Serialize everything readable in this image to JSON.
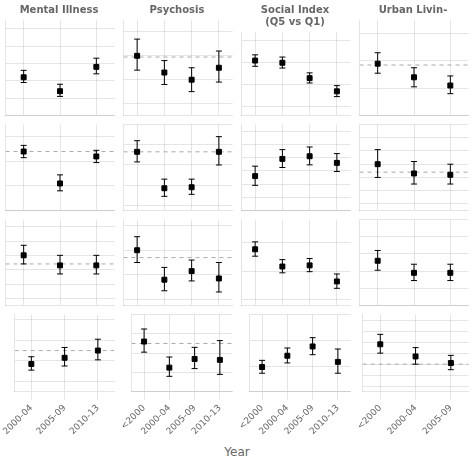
{
  "xlabel": "Year",
  "chart_data": [
    {
      "type": "scatter",
      "title": "Mental Illness",
      "categories": [
        null,
        null,
        null
      ],
      "values": [
        0.52,
        0.44,
        0.58
      ],
      "lows": [
        0.49,
        0.41,
        0.54
      ],
      "highs": [
        0.56,
        0.48,
        0.63
      ],
      "color": "black",
      "marker": "square",
      "ylim": [
        0.3,
        0.85
      ],
      "yticks": [
        0.3,
        0.4,
        0.5,
        0.6,
        0.7,
        0.8
      ],
      "grid": true,
      "tick_labels": false
    },
    {
      "type": "scatter",
      "title": "Psychosis",
      "categories": [
        null,
        null,
        null,
        null
      ],
      "values": [
        0.7,
        0.63,
        0.6,
        0.65
      ],
      "lows": [
        0.64,
        0.58,
        0.55,
        0.59
      ],
      "highs": [
        0.77,
        0.68,
        0.65,
        0.72
      ],
      "reference_line": 0.695,
      "color": "black",
      "marker": "square",
      "ylim": [
        0.45,
        0.85
      ],
      "yticks": [
        0.5,
        0.6,
        0.7,
        0.8
      ],
      "grid": true,
      "tick_labels": false
    },
    {
      "type": "scatter",
      "title": "Social Index\n(Q5 vs Q1)",
      "categories": [
        null,
        null,
        null,
        null
      ],
      "values": [
        3.55,
        3.5,
        3.15,
        2.85
      ],
      "lows": [
        3.42,
        3.38,
        3.04,
        2.73
      ],
      "highs": [
        3.68,
        3.63,
        3.27,
        2.98
      ],
      "color": "black",
      "marker": "square",
      "ylim": [
        2.3,
        4.2
      ],
      "yticks": [
        2.5,
        3.0,
        3.5,
        4.0
      ],
      "grid": true,
      "tick_labels": false
    },
    {
      "type": "scatter",
      "title": "Urban Livin-",
      "categories": [
        null,
        null,
        null
      ],
      "values": [
        1.38,
        1.28,
        1.22
      ],
      "lows": [
        1.31,
        1.21,
        1.16
      ],
      "highs": [
        1.46,
        1.35,
        1.29
      ],
      "reference_line": 1.37,
      "color": "black",
      "marker": "square",
      "ylim": [
        1.0,
        1.7
      ],
      "yticks": [
        1.0,
        1.2,
        1.4,
        1.6
      ],
      "grid": true,
      "tick_labels": false
    },
    {
      "type": "scatter",
      "categories": [
        null,
        null,
        null
      ],
      "values": [
        0.88,
        0.62,
        0.84
      ],
      "lows": [
        0.83,
        0.56,
        0.79
      ],
      "highs": [
        0.93,
        0.69,
        0.89
      ],
      "reference_line": 0.88,
      "color": "black",
      "marker": "square",
      "ylim": [
        0.4,
        1.1
      ],
      "yticks": [
        0.4,
        0.6,
        0.8,
        1.0
      ],
      "grid": true,
      "tick_labels": false
    },
    {
      "type": "scatter",
      "categories": [
        null,
        null,
        null,
        null
      ],
      "values": [
        0.93,
        0.57,
        0.58,
        0.93
      ],
      "lows": [
        0.83,
        0.49,
        0.51,
        0.8
      ],
      "highs": [
        1.04,
        0.66,
        0.66,
        1.08
      ],
      "reference_line": 0.93,
      "color": "black",
      "marker": "square",
      "ylim": [
        0.35,
        1.2
      ],
      "yticks": [
        0.4,
        0.6,
        0.8,
        1.0,
        1.2
      ],
      "grid": true,
      "tick_labels": false
    },
    {
      "type": "scatter",
      "categories": [
        null,
        null,
        null,
        null
      ],
      "values": [
        1.72,
        1.98,
        2.02,
        1.92
      ],
      "lows": [
        1.58,
        1.85,
        1.89,
        1.79
      ],
      "highs": [
        1.87,
        2.12,
        2.16,
        2.06
      ],
      "color": "black",
      "marker": "square",
      "ylim": [
        1.2,
        2.5
      ],
      "yticks": [
        1.2,
        1.4,
        1.6,
        1.8,
        2.0,
        2.2,
        2.4
      ],
      "grid": true,
      "tick_labels": false
    },
    {
      "type": "scatter",
      "categories": [
        null,
        null,
        null
      ],
      "values": [
        1.2,
        1.13,
        1.12
      ],
      "lows": [
        1.1,
        1.05,
        1.05
      ],
      "highs": [
        1.31,
        1.22,
        1.2
      ],
      "reference_line": 1.14,
      "color": "black",
      "marker": "square",
      "ylim": [
        0.85,
        1.5
      ],
      "yticks": [
        0.9,
        1.0,
        1.1,
        1.2,
        1.3,
        1.4,
        1.5
      ],
      "grid": true,
      "tick_labels": false
    },
    {
      "type": "scatter",
      "categories": [
        null,
        null,
        null
      ],
      "values": [
        0.8,
        0.73,
        0.73
      ],
      "lows": [
        0.74,
        0.67,
        0.67
      ],
      "highs": [
        0.87,
        0.8,
        0.8
      ],
      "reference_line": 0.74,
      "color": "black",
      "marker": "square",
      "ylim": [
        0.45,
        1.05
      ],
      "yticks": [
        0.5,
        0.6,
        0.7,
        0.8,
        0.9,
        1.0
      ],
      "grid": true,
      "tick_labels": false
    },
    {
      "type": "scatter",
      "categories": [
        null,
        null,
        null,
        null
      ],
      "values": [
        0.8,
        0.56,
        0.63,
        0.57
      ],
      "lows": [
        0.7,
        0.47,
        0.55,
        0.46
      ],
      "highs": [
        0.91,
        0.66,
        0.72,
        0.7
      ],
      "reference_line": 0.74,
      "color": "black",
      "marker": "square",
      "ylim": [
        0.35,
        1.05
      ],
      "yticks": [
        0.4,
        0.6,
        0.8,
        1.0
      ],
      "grid": true,
      "tick_labels": false
    },
    {
      "type": "scatter",
      "categories": [
        null,
        null,
        null,
        null
      ],
      "values": [
        2.38,
        2.08,
        2.1,
        1.82
      ],
      "lows": [
        2.26,
        1.97,
        1.99,
        1.7
      ],
      "highs": [
        2.51,
        2.2,
        2.22,
        1.95
      ],
      "color": "black",
      "marker": "square",
      "ylim": [
        1.4,
        2.9
      ],
      "yticks": [
        1.5,
        2.0,
        2.5
      ],
      "grid": true,
      "tick_labels": false
    },
    {
      "type": "scatter",
      "categories": [
        null,
        null,
        null
      ],
      "values": [
        1.52,
        1.38,
        1.38
      ],
      "lows": [
        1.41,
        1.29,
        1.29
      ],
      "highs": [
        1.64,
        1.48,
        1.48
      ],
      "color": "black",
      "marker": "square",
      "ylim": [
        1.0,
        2.0
      ],
      "yticks": [
        1.0,
        1.2,
        1.4,
        1.6,
        1.8,
        2.0
      ],
      "grid": true,
      "tick_labels": false
    },
    {
      "type": "scatter",
      "categories": [
        "2000-04",
        "2005-09",
        "2010-13"
      ],
      "values": [
        0.37,
        0.43,
        0.5
      ],
      "lows": [
        0.31,
        0.35,
        0.41
      ],
      "highs": [
        0.44,
        0.53,
        0.61
      ],
      "reference_line": 0.5,
      "color": "black",
      "marker": "square",
      "ylim": [
        0.1,
        0.85
      ],
      "yticks": [
        0.2,
        0.4,
        0.6,
        0.8
      ],
      "grid": true,
      "tick_labels": "x"
    },
    {
      "type": "scatter",
      "categories": [
        "<2000",
        "2000-04",
        "2005-09",
        "2010-13"
      ],
      "values": [
        0.72,
        0.45,
        0.54,
        0.53
      ],
      "lows": [
        0.61,
        0.36,
        0.44,
        0.38
      ],
      "highs": [
        0.85,
        0.56,
        0.66,
        0.73
      ],
      "reference_line": 0.7,
      "color": "black",
      "marker": "square",
      "ylim": [
        0.2,
        1.0
      ],
      "yticks": [
        0.2,
        0.4,
        0.6,
        0.8,
        1.0
      ],
      "grid": true,
      "tick_labels": "x"
    },
    {
      "type": "scatter",
      "categories": [
        "<2000",
        "2000-04",
        "2005-09",
        "2010-13"
      ],
      "values": [
        1.48,
        1.7,
        1.88,
        1.58
      ],
      "lows": [
        1.36,
        1.56,
        1.72,
        1.36
      ],
      "highs": [
        1.61,
        1.85,
        2.05,
        1.83
      ],
      "color": "black",
      "marker": "square",
      "ylim": [
        1.0,
        2.5
      ],
      "yticks": [
        1.0,
        1.5,
        2.0,
        2.5
      ],
      "grid": true,
      "tick_labels": "x"
    },
    {
      "type": "scatter",
      "categories": [
        "<2000",
        "2000-04",
        "2005-09"
      ],
      "values": [
        1.08,
        0.97,
        0.91
      ],
      "lows": [
        1.0,
        0.9,
        0.85
      ],
      "highs": [
        1.17,
        1.05,
        0.98
      ],
      "reference_line": 0.9,
      "color": "black",
      "marker": "square",
      "ylim": [
        0.65,
        1.35
      ],
      "yticks": [
        0.7,
        0.8,
        0.9,
        1.0,
        1.1,
        1.2,
        1.3
      ],
      "grid": true,
      "tick_labels": "x"
    }
  ]
}
